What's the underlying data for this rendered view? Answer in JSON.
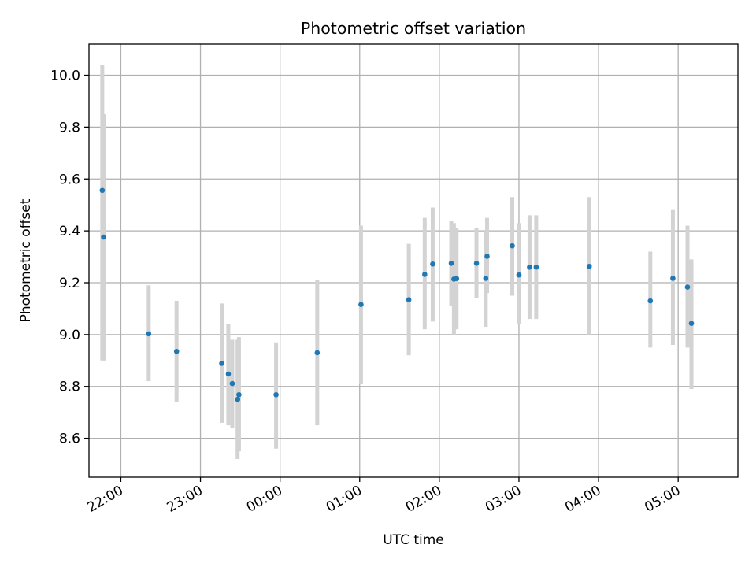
{
  "chart_data": {
    "type": "scatter",
    "title": "Photometric offset variation",
    "xlabel": "UTC time",
    "ylabel": "Photometric offset",
    "x_tick_labels": [
      "22:00",
      "23:00",
      "00:00",
      "01:00",
      "02:00",
      "03:00",
      "04:00",
      "05:00"
    ],
    "y_tick_labels": [
      "8.6",
      "8.8",
      "9.0",
      "9.2",
      "9.4",
      "9.6",
      "9.8",
      "10.0"
    ],
    "y_ticks": [
      8.6,
      8.8,
      9.0,
      9.2,
      9.4,
      9.6,
      9.8,
      10.0
    ],
    "ylim": [
      8.45,
      10.12
    ],
    "xlim_hours": [
      21.6,
      29.75
    ],
    "grid": true,
    "colors": {
      "point": "#1f77b4",
      "errorbar": "#d3d3d3",
      "grid": "#b0b0b0"
    },
    "series": [
      {
        "points": [
          {
            "time": "21:46",
            "y": 9.556,
            "err_low": 8.9,
            "err_high": 10.04
          },
          {
            "time": "21:47",
            "y": 9.376,
            "err_low": 8.9,
            "err_high": 9.85
          },
          {
            "time": "22:21",
            "y": 9.003,
            "err_low": 8.82,
            "err_high": 9.19
          },
          {
            "time": "22:42",
            "y": 8.935,
            "err_low": 8.74,
            "err_high": 9.13
          },
          {
            "time": "23:16",
            "y": 8.889,
            "err_low": 8.66,
            "err_high": 9.12
          },
          {
            "time": "23:21",
            "y": 8.848,
            "err_low": 8.65,
            "err_high": 9.04
          },
          {
            "time": "23:24",
            "y": 8.811,
            "err_low": 8.64,
            "err_high": 8.98
          },
          {
            "time": "23:28",
            "y": 8.75,
            "err_low": 8.52,
            "err_high": 8.98
          },
          {
            "time": "23:29",
            "y": 8.768,
            "err_low": 8.55,
            "err_high": 8.99
          },
          {
            "time": "23:57",
            "y": 8.768,
            "err_low": 8.56,
            "err_high": 8.97
          },
          {
            "time": "00:28",
            "y": 8.93,
            "err_low": 8.65,
            "err_high": 9.21
          },
          {
            "time": "01:01",
            "y": 9.116,
            "err_low": 8.81,
            "err_high": 9.42
          },
          {
            "time": "01:37",
            "y": 9.134,
            "err_low": 8.92,
            "err_high": 9.35
          },
          {
            "time": "01:49",
            "y": 9.232,
            "err_low": 9.02,
            "err_high": 9.45
          },
          {
            "time": "01:55",
            "y": 9.272,
            "err_low": 9.05,
            "err_high": 9.49
          },
          {
            "time": "02:09",
            "y": 9.275,
            "err_low": 9.11,
            "err_high": 9.44
          },
          {
            "time": "02:11",
            "y": 9.214,
            "err_low": 9.0,
            "err_high": 9.43
          },
          {
            "time": "02:13",
            "y": 9.216,
            "err_low": 9.02,
            "err_high": 9.41
          },
          {
            "time": "02:28",
            "y": 9.275,
            "err_low": 9.14,
            "err_high": 9.41
          },
          {
            "time": "02:35",
            "y": 9.217,
            "err_low": 9.03,
            "err_high": 9.4
          },
          {
            "time": "02:36",
            "y": 9.302,
            "err_low": 9.16,
            "err_high": 9.45
          },
          {
            "time": "02:55",
            "y": 9.342,
            "err_low": 9.15,
            "err_high": 9.53
          },
          {
            "time": "03:00",
            "y": 9.23,
            "err_low": 9.04,
            "err_high": 9.43
          },
          {
            "time": "03:08",
            "y": 9.26,
            "err_low": 9.06,
            "err_high": 9.46
          },
          {
            "time": "03:13",
            "y": 9.26,
            "err_low": 9.06,
            "err_high": 9.46
          },
          {
            "time": "03:53",
            "y": 9.263,
            "err_low": 9.0,
            "err_high": 9.53
          },
          {
            "time": "04:39",
            "y": 9.13,
            "err_low": 8.95,
            "err_high": 9.32
          },
          {
            "time": "04:56",
            "y": 9.217,
            "err_low": 8.96,
            "err_high": 9.48
          },
          {
            "time": "05:07",
            "y": 9.183,
            "err_low": 8.95,
            "err_high": 9.42
          },
          {
            "time": "05:10",
            "y": 9.043,
            "err_low": 8.79,
            "err_high": 9.29
          }
        ]
      }
    ]
  }
}
